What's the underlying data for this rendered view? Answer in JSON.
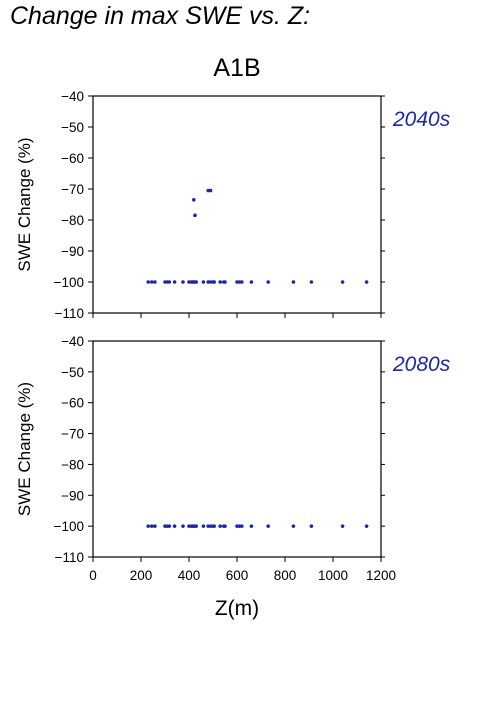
{
  "page_title": "Change in max SWE vs. Z:",
  "scenario": "A1B",
  "colors": {
    "points": "#1c28a8",
    "decade_label": "#1c28a8",
    "axis": "#000000"
  },
  "chart_data": [
    {
      "type": "scatter",
      "title": "",
      "panel_label": "2040s",
      "xlabel": "",
      "ylabel": "SWE Change (%)",
      "xlim": [
        0,
        1200
      ],
      "ylim": [
        -110,
        -40
      ],
      "yticks": [
        -40,
        -50,
        -60,
        -70,
        -80,
        -90,
        -100,
        -110
      ],
      "grid": false,
      "series": [
        {
          "x": [
            230,
            245,
            258,
            300,
            310,
            318,
            340,
            375,
            400,
            410,
            415,
            420,
            425,
            430,
            460,
            480,
            490,
            500,
            505,
            530,
            545,
            550,
            600,
            610,
            620,
            660,
            730,
            835,
            910,
            1040,
            1140,
            420,
            480,
            490,
            425
          ],
          "y": [
            -100,
            -100,
            -100,
            -100,
            -100,
            -100,
            -100,
            -100,
            -100,
            -100,
            -100,
            -100,
            -100,
            -100,
            -100,
            -100,
            -100,
            -100,
            -100,
            -100,
            -100,
            -100,
            -100,
            -100,
            -100,
            -100,
            -100,
            -100,
            -100,
            -100,
            -100,
            -73.5,
            -70.5,
            -70.5,
            -78.5
          ]
        }
      ]
    },
    {
      "type": "scatter",
      "title": "",
      "panel_label": "2080s",
      "xlabel": "Z(m)",
      "ylabel": "SWE Change (%)",
      "xlim": [
        0,
        1200
      ],
      "ylim": [
        -110,
        -40
      ],
      "xticks": [
        0,
        200,
        400,
        600,
        800,
        1000,
        1200
      ],
      "yticks": [
        -40,
        -50,
        -60,
        -70,
        -80,
        -90,
        -100,
        -110
      ],
      "grid": false,
      "series": [
        {
          "x": [
            230,
            245,
            258,
            300,
            310,
            318,
            340,
            375,
            400,
            410,
            415,
            420,
            425,
            430,
            460,
            480,
            490,
            500,
            505,
            530,
            545,
            550,
            600,
            610,
            620,
            660,
            730,
            835,
            910,
            1040,
            1140
          ],
          "y": [
            -100,
            -100,
            -100,
            -100,
            -100,
            -100,
            -100,
            -100,
            -100,
            -100,
            -100,
            -100,
            -100,
            -100,
            -100,
            -100,
            -100,
            -100,
            -100,
            -100,
            -100,
            -100,
            -100,
            -100,
            -100,
            -100,
            -100,
            -100,
            -100,
            -100,
            -100
          ]
        }
      ]
    }
  ]
}
